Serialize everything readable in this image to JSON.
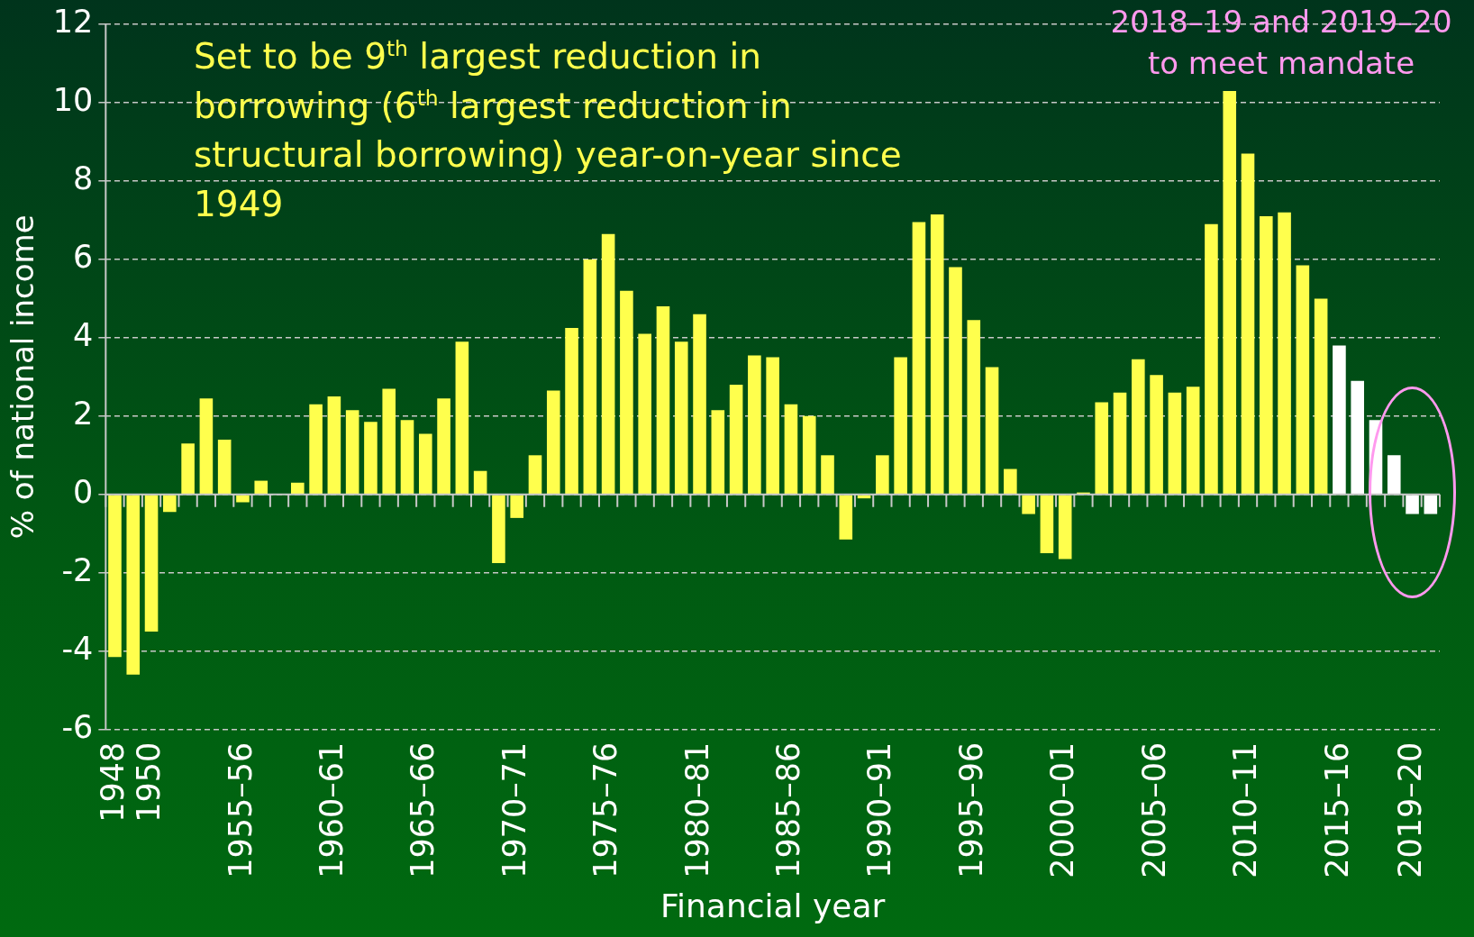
{
  "chart_data": {
    "type": "bar",
    "xlabel": "Financial year",
    "ylabel": "% of national income",
    "categories": [
      "1948",
      null,
      "1950",
      null,
      null,
      null,
      null,
      "1955–56",
      null,
      null,
      null,
      null,
      "1960–61",
      null,
      null,
      null,
      null,
      "1965–66",
      null,
      null,
      null,
      null,
      "1970–71",
      null,
      null,
      null,
      null,
      "1975–76",
      null,
      null,
      null,
      null,
      "1980–81",
      null,
      null,
      null,
      null,
      "1985–86",
      null,
      null,
      null,
      null,
      "1990–91",
      null,
      null,
      null,
      null,
      "1995–96",
      null,
      null,
      null,
      null,
      "2000–01",
      null,
      null,
      null,
      null,
      "2005–06",
      null,
      null,
      null,
      null,
      "2010–11",
      null,
      null,
      null,
      null,
      "2015–16",
      null,
      null,
      null,
      "2019–20",
      null
    ],
    "values": [
      -4.15,
      -4.6,
      -3.5,
      -0.45,
      1.3,
      2.45,
      1.4,
      -0.2,
      0.35,
      0,
      0.3,
      2.3,
      2.5,
      2.15,
      1.85,
      2.7,
      1.9,
      1.55,
      2.45,
      3.9,
      0.6,
      -1.75,
      -0.6,
      1.0,
      2.65,
      4.25,
      6.0,
      6.65,
      5.2,
      4.1,
      4.8,
      3.9,
      4.6,
      2.15,
      2.8,
      3.55,
      3.5,
      2.3,
      2.0,
      1.0,
      -1.15,
      -0.1,
      1.0,
      3.5,
      6.95,
      7.15,
      5.8,
      4.45,
      3.25,
      0.65,
      -0.5,
      -1.5,
      -1.65,
      0.05,
      2.35,
      2.6,
      3.45,
      3.05,
      2.6,
      2.75,
      6.9,
      10.3,
      8.7,
      7.1,
      7.2,
      5.85,
      5.0,
      3.8,
      2.9,
      1.9,
      1.0,
      -0.5,
      -0.5
    ],
    "colors": [
      "#ffff4d",
      "#ffff4d",
      "#ffff4d",
      "#ffff4d",
      "#ffff4d",
      "#ffff4d",
      "#ffff4d",
      "#ffff4d",
      "#ffff4d",
      "#ffff4d",
      "#ffff4d",
      "#ffff4d",
      "#ffff4d",
      "#ffff4d",
      "#ffff4d",
      "#ffff4d",
      "#ffff4d",
      "#ffff4d",
      "#ffff4d",
      "#ffff4d",
      "#ffff4d",
      "#ffff4d",
      "#ffff4d",
      "#ffff4d",
      "#ffff4d",
      "#ffff4d",
      "#ffff4d",
      "#ffff4d",
      "#ffff4d",
      "#ffff4d",
      "#ffff4d",
      "#ffff4d",
      "#ffff4d",
      "#ffff4d",
      "#ffff4d",
      "#ffff4d",
      "#ffff4d",
      "#ffff4d",
      "#ffff4d",
      "#ffff4d",
      "#ffff4d",
      "#ffff4d",
      "#ffff4d",
      "#ffff4d",
      "#ffff4d",
      "#ffff4d",
      "#ffff4d",
      "#ffff4d",
      "#ffff4d",
      "#ffff4d",
      "#ffff4d",
      "#ffff4d",
      "#ffff4d",
      "#ffff4d",
      "#ffff4d",
      "#ffff4d",
      "#ffff4d",
      "#ffff4d",
      "#ffff4d",
      "#ffff4d",
      "#ffff4d",
      "#ffff4d",
      "#ffff4d",
      "#ffff4d",
      "#ffff4d",
      "#ffff4d",
      "#ffff4d",
      "#ffffff",
      "#ffffff",
      "#ffffff",
      "#ffffff",
      "#ffffff",
      "#ffffff"
    ],
    "ylim": [
      -6,
      12
    ],
    "yticks": [
      -6,
      -4,
      -2,
      0,
      2,
      4,
      6,
      8,
      10,
      12
    ],
    "grid": "y",
    "legend": false,
    "annotations": [
      "Set to be 9$^{th}$ largest reduction in borrowing (6$^{th}$ largest reduction in structural borrowing) year-on-year since 1949",
      "2018–19 and 2019–20 to meet mandate"
    ]
  }
}
